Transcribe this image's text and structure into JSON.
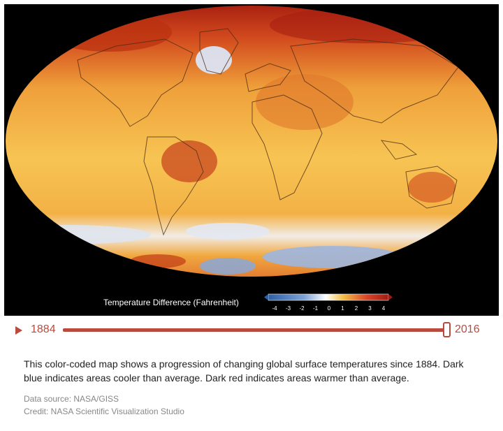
{
  "map": {
    "legend": {
      "title": "Temperature Difference (Fahrenheit)",
      "ticks": [
        "-4",
        "-3",
        "-2",
        "-1",
        "0",
        "1",
        "2",
        "3",
        "4"
      ],
      "colors": [
        "#2e5fa8",
        "#7ea3d4",
        "#ffffff",
        "#f4c04a",
        "#d9452a",
        "#9e1c12"
      ]
    }
  },
  "timeline": {
    "start_year": "1884",
    "end_year": "2016",
    "current_year": "2016",
    "accent_color": "#b94a3e"
  },
  "caption": {
    "text": "This color-coded map shows a progression of changing global surface temperatures since 1884. Dark blue indicates areas cooler than average. Dark red indicates areas warmer than average."
  },
  "credits": {
    "source": "Data source: NASA/GISS",
    "credit": "Credit: NASA Scientific Visualization Studio"
  }
}
